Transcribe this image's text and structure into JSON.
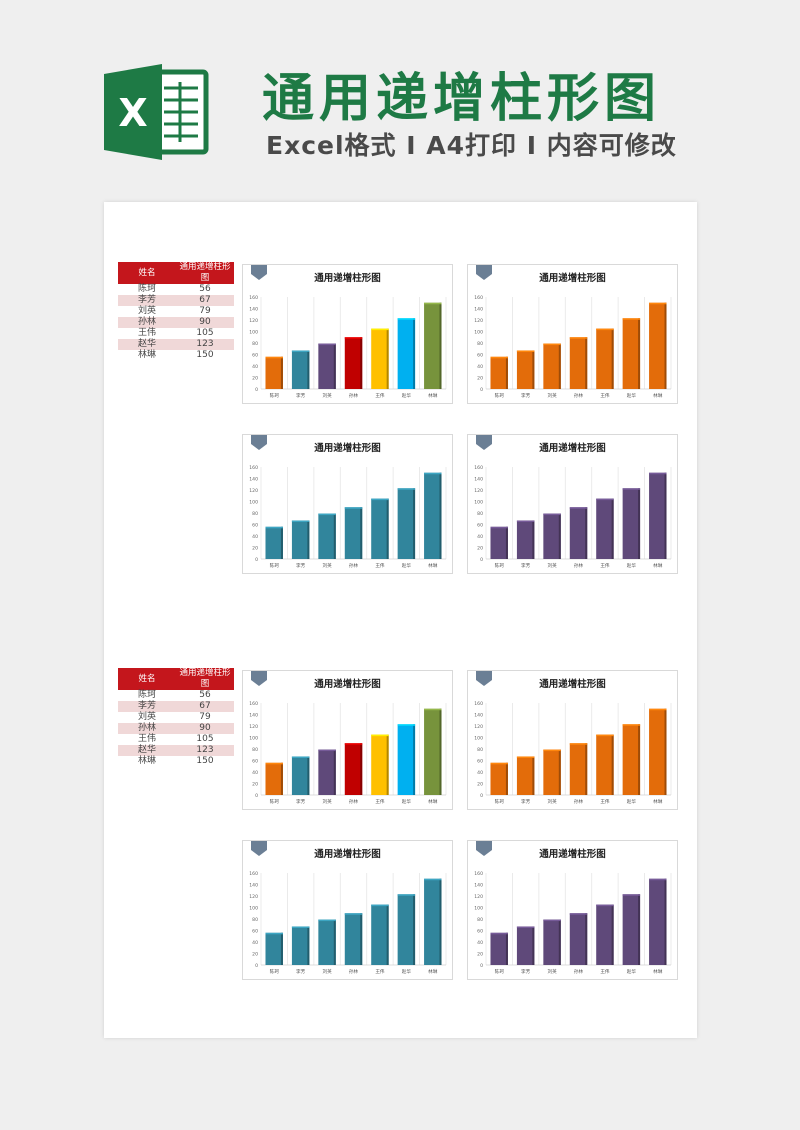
{
  "header": {
    "title": "通用递增柱形图",
    "subtitle": "Excel格式 I A4打印 I 内容可修改"
  },
  "table": {
    "col1": "姓名",
    "col2": "通用递增柱形图",
    "rows": [
      {
        "name": "陈珂",
        "value": "56"
      },
      {
        "name": "李芳",
        "value": "67"
      },
      {
        "name": "刘英",
        "value": "79"
      },
      {
        "name": "孙林",
        "value": "90"
      },
      {
        "name": "王伟",
        "value": "105"
      },
      {
        "name": "赵华",
        "value": "123"
      },
      {
        "name": "林琳",
        "value": "150"
      }
    ]
  },
  "colors": {
    "multi": [
      "#e36c0a",
      "#31859c",
      "#5f497a",
      "#c00000",
      "#ffc000",
      "#00b0f0",
      "#77933c"
    ],
    "orange": "#e36c0a",
    "teal": "#31859c",
    "purple": "#5f497a",
    "header_red": "#c4161c",
    "title_green": "#1e7a45"
  },
  "chart_data": [
    {
      "type": "bar",
      "title": "通用递增柱形图",
      "categories": [
        "陈珂",
        "李芳",
        "刘英",
        "孙林",
        "王伟",
        "赵华",
        "林琳"
      ],
      "values": [
        56,
        67,
        79,
        90,
        105,
        123,
        150
      ],
      "ylim": [
        0,
        160
      ],
      "yticks": [
        0,
        20,
        40,
        60,
        80,
        100,
        120,
        140,
        160
      ],
      "color_scheme": "multi",
      "grid": "vertical"
    },
    {
      "type": "bar",
      "title": "通用递增柱形图",
      "categories": [
        "陈珂",
        "李芳",
        "刘英",
        "孙林",
        "王伟",
        "赵华",
        "林琳"
      ],
      "values": [
        56,
        67,
        79,
        90,
        105,
        123,
        150
      ],
      "ylim": [
        0,
        160
      ],
      "yticks": [
        0,
        20,
        40,
        60,
        80,
        100,
        120,
        140,
        160
      ],
      "color_scheme": "orange",
      "grid": "vertical"
    },
    {
      "type": "bar",
      "title": "通用递增柱形图",
      "categories": [
        "陈珂",
        "李芳",
        "刘英",
        "孙林",
        "王伟",
        "赵华",
        "林琳"
      ],
      "values": [
        56,
        67,
        79,
        90,
        105,
        123,
        150
      ],
      "ylim": [
        0,
        160
      ],
      "yticks": [
        0,
        20,
        40,
        60,
        80,
        100,
        120,
        140,
        160
      ],
      "color_scheme": "teal",
      "grid": "vertical"
    },
    {
      "type": "bar",
      "title": "通用递增柱形图",
      "categories": [
        "陈珂",
        "李芳",
        "刘英",
        "孙林",
        "王伟",
        "赵华",
        "林琳"
      ],
      "values": [
        56,
        67,
        79,
        90,
        105,
        123,
        150
      ],
      "ylim": [
        0,
        160
      ],
      "yticks": [
        0,
        20,
        40,
        60,
        80,
        100,
        120,
        140,
        160
      ],
      "color_scheme": "purple",
      "grid": "vertical"
    },
    {
      "type": "bar",
      "title": "通用递增柱形图",
      "categories": [
        "陈珂",
        "李芳",
        "刘英",
        "孙林",
        "王伟",
        "赵华",
        "林琳"
      ],
      "values": [
        56,
        67,
        79,
        90,
        105,
        123,
        150
      ],
      "ylim": [
        0,
        160
      ],
      "yticks": [
        0,
        20,
        40,
        60,
        80,
        100,
        120,
        140,
        160
      ],
      "color_scheme": "multi",
      "grid": "vertical"
    },
    {
      "type": "bar",
      "title": "通用递增柱形图",
      "categories": [
        "陈珂",
        "李芳",
        "刘英",
        "孙林",
        "王伟",
        "赵华",
        "林琳"
      ],
      "values": [
        56,
        67,
        79,
        90,
        105,
        123,
        150
      ],
      "ylim": [
        0,
        160
      ],
      "yticks": [
        0,
        20,
        40,
        60,
        80,
        100,
        120,
        140,
        160
      ],
      "color_scheme": "orange",
      "grid": "vertical"
    },
    {
      "type": "bar",
      "title": "通用递增柱形图",
      "categories": [
        "陈珂",
        "李芳",
        "刘英",
        "孙林",
        "王伟",
        "赵华",
        "林琳"
      ],
      "values": [
        56,
        67,
        79,
        90,
        105,
        123,
        150
      ],
      "ylim": [
        0,
        160
      ],
      "yticks": [
        0,
        20,
        40,
        60,
        80,
        100,
        120,
        140,
        160
      ],
      "color_scheme": "teal",
      "grid": "vertical"
    },
    {
      "type": "bar",
      "title": "通用递增柱形图",
      "categories": [
        "陈珂",
        "李芳",
        "刘英",
        "孙林",
        "王伟",
        "赵华",
        "林琳"
      ],
      "values": [
        56,
        67,
        79,
        90,
        105,
        123,
        150
      ],
      "ylim": [
        0,
        160
      ],
      "yticks": [
        0,
        20,
        40,
        60,
        80,
        100,
        120,
        140,
        160
      ],
      "color_scheme": "purple",
      "grid": "vertical"
    }
  ]
}
